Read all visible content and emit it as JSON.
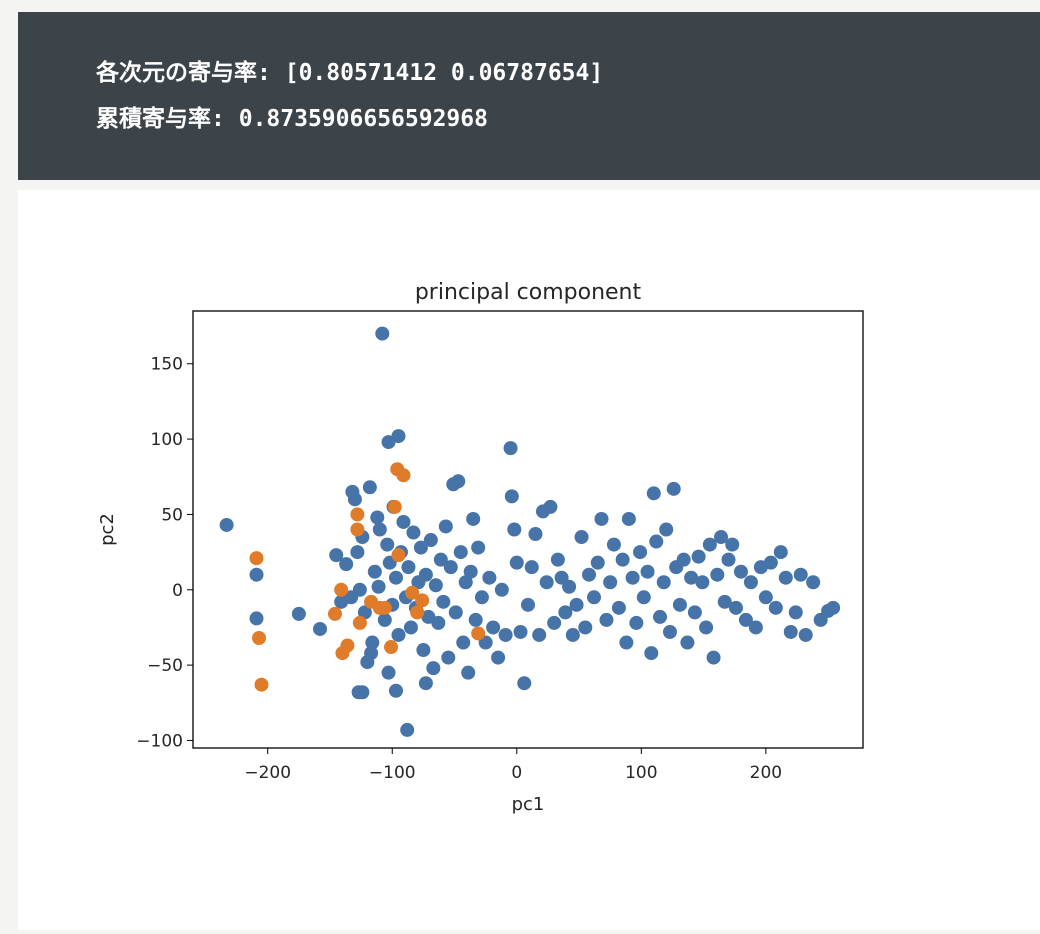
{
  "output": {
    "line1_label": "各次元の寄与率:",
    "line1_value": "[0.80571412 0.06787654]",
    "line2_label": "累積寄与率:",
    "line2_value": "0.8735906656592968"
  },
  "colors": {
    "output_background": "#3c4449",
    "output_text": "#ffffff",
    "series_blue": "#4673a8",
    "series_orange": "#e07b2a"
  },
  "chart_data": {
    "type": "scatter",
    "title": "principal component",
    "xlabel": "pc1",
    "ylabel": "pc2",
    "xlim": [
      -260,
      278
    ],
    "ylim": [
      -105,
      185
    ],
    "xticks": [
      -200,
      -100,
      0,
      100,
      200
    ],
    "yticks": [
      -100,
      -50,
      0,
      50,
      100,
      150
    ],
    "xtick_labels": [
      "−200",
      "−100",
      "0",
      "100",
      "200"
    ],
    "ytick_labels": [
      "−100",
      "−50",
      "0",
      "50",
      "100",
      "150"
    ],
    "grid": false,
    "legend": "none",
    "series": [
      {
        "color": "#4673a8",
        "points": [
          [
            -233,
            43
          ],
          [
            -209,
            10
          ],
          [
            -209,
            -19
          ],
          [
            -175,
            -16
          ],
          [
            -158,
            -26
          ],
          [
            -145,
            23
          ],
          [
            -141,
            -8
          ],
          [
            -137,
            17
          ],
          [
            -133,
            -5
          ],
          [
            -132,
            65
          ],
          [
            -130,
            60
          ],
          [
            -128,
            25
          ],
          [
            -126,
            0
          ],
          [
            -124,
            35
          ],
          [
            -122,
            -15
          ],
          [
            -120,
            -48
          ],
          [
            -118,
            68
          ],
          [
            -116,
            -35
          ],
          [
            -114,
            12
          ],
          [
            -112,
            48
          ],
          [
            -111,
            2
          ],
          [
            -110,
            40
          ],
          [
            -108,
            170
          ],
          [
            -106,
            -20
          ],
          [
            -104,
            30
          ],
          [
            -103,
            -55
          ],
          [
            -102,
            18
          ],
          [
            -100,
            -10
          ],
          [
            -99,
            55
          ],
          [
            -97,
            8
          ],
          [
            -95,
            -30
          ],
          [
            -93,
            25
          ],
          [
            -91,
            45
          ],
          [
            -89,
            -5
          ],
          [
            -87,
            15
          ],
          [
            -85,
            -25
          ],
          [
            -83,
            38
          ],
          [
            -81,
            -12
          ],
          [
            -79,
            5
          ],
          [
            -77,
            28
          ],
          [
            -75,
            -40
          ],
          [
            -73,
            10
          ],
          [
            -71,
            -18
          ],
          [
            -69,
            33
          ],
          [
            -67,
            -52
          ],
          [
            -65,
            3
          ],
          [
            -63,
            -22
          ],
          [
            -61,
            20
          ],
          [
            -59,
            -8
          ],
          [
            -57,
            42
          ],
          [
            -55,
            -45
          ],
          [
            -53,
            15
          ],
          [
            -51,
            70
          ],
          [
            -49,
            -15
          ],
          [
            -47,
            72
          ],
          [
            -45,
            25
          ],
          [
            -43,
            -35
          ],
          [
            -41,
            5
          ],
          [
            -39,
            -55
          ],
          [
            -37,
            12
          ],
          [
            -35,
            47
          ],
          [
            -33,
            -20
          ],
          [
            -31,
            28
          ],
          [
            -28,
            -5
          ],
          [
            -25,
            -35
          ],
          [
            -22,
            8
          ],
          [
            -19,
            -25
          ],
          [
            -15,
            -45
          ],
          [
            -12,
            0
          ],
          [
            -9,
            -30
          ],
          [
            -5,
            94
          ],
          [
            -4,
            62
          ],
          [
            -2,
            40
          ],
          [
            0,
            18
          ],
          [
            3,
            -28
          ],
          [
            6,
            -62
          ],
          [
            9,
            -10
          ],
          [
            12,
            15
          ],
          [
            15,
            37
          ],
          [
            18,
            -30
          ],
          [
            21,
            52
          ],
          [
            24,
            5
          ],
          [
            27,
            55
          ],
          [
            30,
            -22
          ],
          [
            33,
            20
          ],
          [
            36,
            8
          ],
          [
            39,
            -15
          ],
          [
            42,
            2
          ],
          [
            45,
            -30
          ],
          [
            48,
            -10
          ],
          [
            52,
            35
          ],
          [
            55,
            -25
          ],
          [
            58,
            10
          ],
          [
            62,
            -5
          ],
          [
            65,
            18
          ],
          [
            68,
            47
          ],
          [
            72,
            -20
          ],
          [
            75,
            5
          ],
          [
            78,
            30
          ],
          [
            82,
            -12
          ],
          [
            85,
            20
          ],
          [
            88,
            -35
          ],
          [
            90,
            47
          ],
          [
            93,
            8
          ],
          [
            96,
            -22
          ],
          [
            99,
            25
          ],
          [
            102,
            -5
          ],
          [
            105,
            12
          ],
          [
            108,
            -42
          ],
          [
            110,
            64
          ],
          [
            112,
            32
          ],
          [
            115,
            -18
          ],
          [
            118,
            5
          ],
          [
            120,
            40
          ],
          [
            123,
            -28
          ],
          [
            126,
            67
          ],
          [
            128,
            15
          ],
          [
            131,
            -10
          ],
          [
            134,
            20
          ],
          [
            137,
            -35
          ],
          [
            140,
            8
          ],
          [
            143,
            -15
          ],
          [
            146,
            22
          ],
          [
            149,
            5
          ],
          [
            152,
            -25
          ],
          [
            155,
            30
          ],
          [
            158,
            -45
          ],
          [
            161,
            10
          ],
          [
            164,
            35
          ],
          [
            167,
            -8
          ],
          [
            170,
            20
          ],
          [
            173,
            30
          ],
          [
            176,
            -12
          ],
          [
            180,
            12
          ],
          [
            184,
            -20
          ],
          [
            188,
            5
          ],
          [
            192,
            -25
          ],
          [
            196,
            15
          ],
          [
            200,
            -5
          ],
          [
            204,
            18
          ],
          [
            208,
            -12
          ],
          [
            212,
            25
          ],
          [
            216,
            8
          ],
          [
            220,
            -28
          ],
          [
            224,
            -15
          ],
          [
            228,
            10
          ],
          [
            232,
            -30
          ],
          [
            238,
            5
          ],
          [
            244,
            -20
          ],
          [
            250,
            -14
          ],
          [
            254,
            -12
          ],
          [
            -124,
            -68
          ],
          [
            -97,
            -67
          ],
          [
            -88,
            -93
          ],
          [
            -73,
            -62
          ],
          [
            -95,
            102
          ],
          [
            -103,
            98
          ],
          [
            -117,
            -42
          ],
          [
            -127,
            -68
          ]
        ]
      },
      {
        "color": "#e07b2a",
        "points": [
          [
            -209,
            21
          ],
          [
            -207,
            -32
          ],
          [
            -205,
            -63
          ],
          [
            -146,
            -16
          ],
          [
            -141,
            0
          ],
          [
            -140,
            -42
          ],
          [
            -136,
            -37
          ],
          [
            -128,
            40
          ],
          [
            -128,
            50
          ],
          [
            -126,
            -22
          ],
          [
            -117,
            -8
          ],
          [
            -110,
            -12
          ],
          [
            -106,
            -12
          ],
          [
            -101,
            -38
          ],
          [
            -98,
            55
          ],
          [
            -96,
            80
          ],
          [
            -95,
            23
          ],
          [
            -91,
            76
          ],
          [
            -84,
            -2
          ],
          [
            -80,
            -15
          ],
          [
            -76,
            -7
          ],
          [
            -31,
            -29
          ]
        ]
      }
    ]
  }
}
